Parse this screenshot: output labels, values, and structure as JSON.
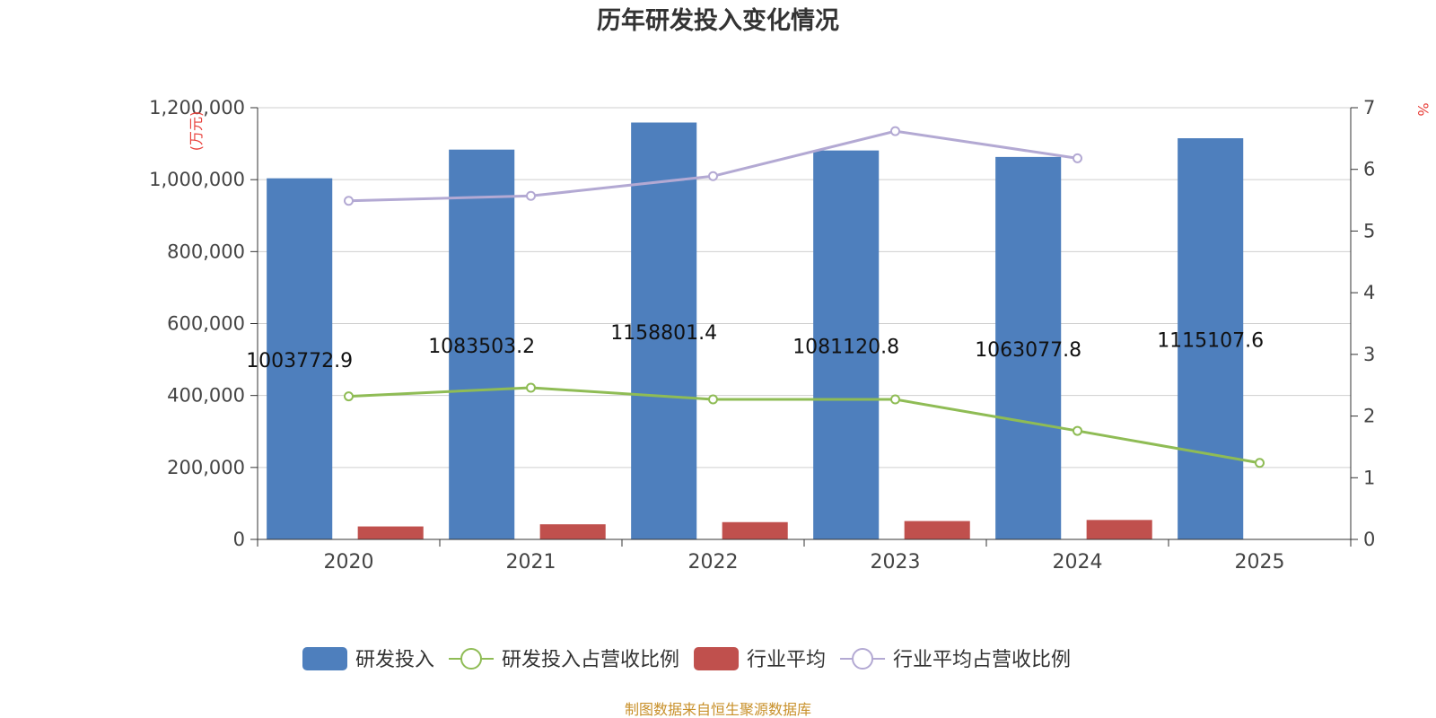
{
  "chart_data": {
    "type": "bar",
    "title": "历年研发投入变化情况",
    "categories": [
      "2020",
      "2021",
      "2022",
      "2023",
      "2024",
      "2025"
    ],
    "y_left": {
      "unit_label": "(万元)",
      "range": [
        0,
        1200000
      ],
      "ticks": [
        0,
        200000,
        400000,
        600000,
        800000,
        1000000,
        1200000
      ],
      "tick_labels": [
        "0",
        "200,000",
        "400,000",
        "600,000",
        "800,000",
        "1,000,000",
        "1,200,000"
      ]
    },
    "y_right": {
      "unit_label": "%",
      "range": [
        0,
        7
      ],
      "ticks": [
        0,
        1,
        2,
        3,
        4,
        5,
        6,
        7
      ],
      "tick_labels": [
        "0",
        "1",
        "2",
        "3",
        "4",
        "5",
        "6",
        "7"
      ]
    },
    "grid": true,
    "legend_position": "bottom-center",
    "series": [
      {
        "name": "研发投入",
        "kind": "bar",
        "axis": "left",
        "color": "#4e7fbd",
        "values": [
          1003772.9,
          1083503.2,
          1158801.4,
          1081120.8,
          1063077.8,
          1115107.6
        ],
        "labels": [
          "1003772.9",
          "1083503.2",
          "1158801.4",
          "1081120.8",
          "1063077.8",
          "1115107.6"
        ]
      },
      {
        "name": "研发投入占营收比例",
        "kind": "line",
        "axis": "right",
        "color": "#8fbc55",
        "values": [
          2.32,
          2.46,
          2.27,
          2.27,
          1.76,
          1.24
        ]
      },
      {
        "name": "行业平均",
        "kind": "bar",
        "axis": "left",
        "color": "#c0504d",
        "values": [
          36000,
          42000,
          48000,
          51000,
          54000,
          null
        ]
      },
      {
        "name": "行业平均占营收比例",
        "kind": "line",
        "axis": "right",
        "color": "#b3a9d3",
        "values": [
          5.49,
          5.57,
          5.89,
          6.62,
          6.18,
          null
        ]
      }
    ],
    "source": "制图数据来自恒生聚源数据库"
  }
}
